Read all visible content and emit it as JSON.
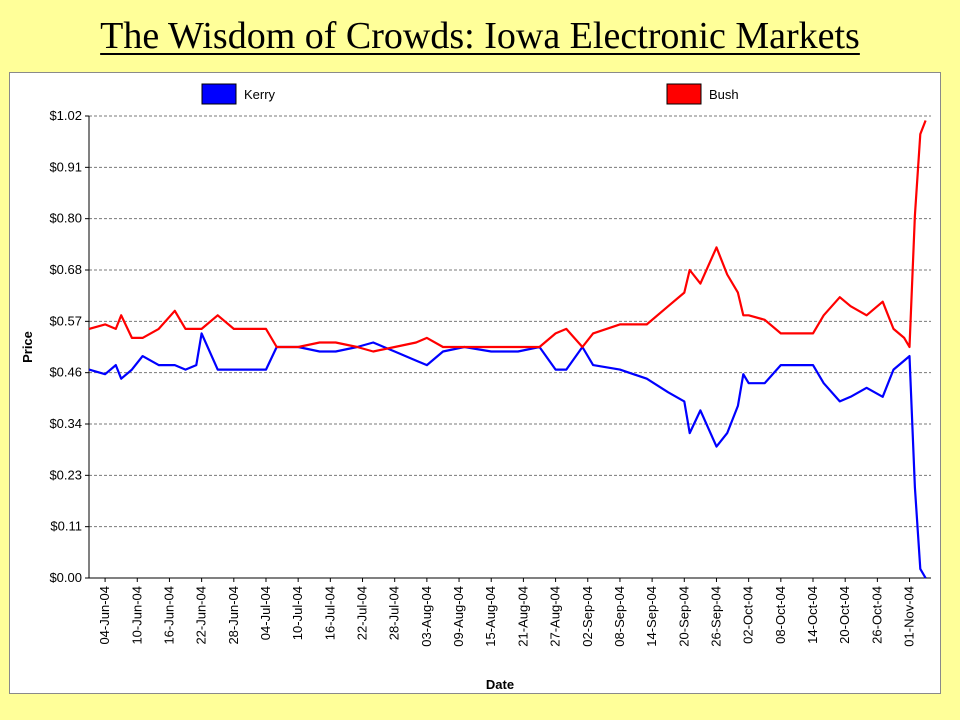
{
  "page": {
    "title": "The Wisdom of Crowds: Iowa Electronic Markets",
    "background": "#FFFF99"
  },
  "chart_data": {
    "type": "line",
    "title": "",
    "xlabel": "Date",
    "ylabel": "Price",
    "grid": true,
    "legend_position": "top",
    "y_ticks": [
      "$0.00",
      "$0.11",
      "$0.23",
      "$0.34",
      "$0.46",
      "$0.57",
      "$0.68",
      "$0.80",
      "$0.91",
      "$1.02"
    ],
    "ylim": [
      0,
      1.02
    ],
    "xlim": [
      "2004-06-01",
      "2004-11-05"
    ],
    "x_ticks": [
      "04-Jun-04",
      "10-Jun-04",
      "16-Jun-04",
      "22-Jun-04",
      "28-Jun-04",
      "04-Jul-04",
      "10-Jul-04",
      "16-Jul-04",
      "22-Jul-04",
      "28-Jul-04",
      "03-Aug-04",
      "09-Aug-04",
      "15-Aug-04",
      "21-Aug-04",
      "27-Aug-04",
      "02-Sep-04",
      "08-Sep-04",
      "14-Sep-04",
      "20-Sep-04",
      "26-Sep-04",
      "02-Oct-04",
      "08-Oct-04",
      "14-Oct-04",
      "20-Oct-04",
      "26-Oct-04",
      "01-Nov-04"
    ],
    "series": [
      {
        "name": "Kerry",
        "color": "#0000FF",
        "x": [
          "2004-06-01",
          "2004-06-04",
          "2004-06-06",
          "2004-06-07",
          "2004-06-09",
          "2004-06-11",
          "2004-06-14",
          "2004-06-17",
          "2004-06-19",
          "2004-06-21",
          "2004-06-22",
          "2004-06-25",
          "2004-06-28",
          "2004-07-01",
          "2004-07-04",
          "2004-07-06",
          "2004-07-10",
          "2004-07-14",
          "2004-07-17",
          "2004-07-21",
          "2004-07-24",
          "2004-07-28",
          "2004-08-01",
          "2004-08-03",
          "2004-08-06",
          "2004-08-10",
          "2004-08-15",
          "2004-08-20",
          "2004-08-24",
          "2004-08-27",
          "2004-08-29",
          "2004-09-01",
          "2004-09-03",
          "2004-09-08",
          "2004-09-13",
          "2004-09-17",
          "2004-09-20",
          "2004-09-21",
          "2004-09-23",
          "2004-09-26",
          "2004-09-28",
          "2004-09-30",
          "2004-10-01",
          "2004-10-02",
          "2004-10-05",
          "2004-10-08",
          "2004-10-11",
          "2004-10-14",
          "2004-10-16",
          "2004-10-19",
          "2004-10-21",
          "2004-10-24",
          "2004-10-27",
          "2004-10-29",
          "2004-10-31",
          "2004-11-01",
          "2004-11-02",
          "2004-11-03",
          "2004-11-04"
        ],
        "y": [
          0.46,
          0.45,
          0.47,
          0.44,
          0.46,
          0.49,
          0.47,
          0.47,
          0.46,
          0.47,
          0.54,
          0.46,
          0.46,
          0.46,
          0.46,
          0.51,
          0.51,
          0.5,
          0.5,
          0.51,
          0.52,
          0.5,
          0.48,
          0.47,
          0.5,
          0.51,
          0.5,
          0.5,
          0.51,
          0.46,
          0.46,
          0.51,
          0.47,
          0.46,
          0.44,
          0.41,
          0.39,
          0.32,
          0.37,
          0.29,
          0.32,
          0.38,
          0.45,
          0.43,
          0.43,
          0.47,
          0.47,
          0.47,
          0.43,
          0.39,
          0.4,
          0.42,
          0.4,
          0.46,
          0.48,
          0.49,
          0.2,
          0.02,
          0.0
        ]
      },
      {
        "name": "Bush",
        "color": "#FF0000",
        "x": [
          "2004-06-01",
          "2004-06-04",
          "2004-06-06",
          "2004-06-07",
          "2004-06-09",
          "2004-06-11",
          "2004-06-14",
          "2004-06-17",
          "2004-06-19",
          "2004-06-21",
          "2004-06-22",
          "2004-06-25",
          "2004-06-28",
          "2004-07-01",
          "2004-07-04",
          "2004-07-06",
          "2004-07-10",
          "2004-07-14",
          "2004-07-17",
          "2004-07-21",
          "2004-07-24",
          "2004-07-28",
          "2004-08-01",
          "2004-08-03",
          "2004-08-06",
          "2004-08-10",
          "2004-08-15",
          "2004-08-20",
          "2004-08-24",
          "2004-08-27",
          "2004-08-29",
          "2004-09-01",
          "2004-09-03",
          "2004-09-08",
          "2004-09-13",
          "2004-09-17",
          "2004-09-20",
          "2004-09-21",
          "2004-09-23",
          "2004-09-26",
          "2004-09-28",
          "2004-09-30",
          "2004-10-01",
          "2004-10-02",
          "2004-10-05",
          "2004-10-08",
          "2004-10-11",
          "2004-10-14",
          "2004-10-16",
          "2004-10-19",
          "2004-10-21",
          "2004-10-24",
          "2004-10-27",
          "2004-10-29",
          "2004-10-31",
          "2004-11-01",
          "2004-11-02",
          "2004-11-03",
          "2004-11-04"
        ],
        "y": [
          0.55,
          0.56,
          0.55,
          0.58,
          0.53,
          0.53,
          0.55,
          0.59,
          0.55,
          0.55,
          0.55,
          0.58,
          0.55,
          0.55,
          0.55,
          0.51,
          0.51,
          0.52,
          0.52,
          0.51,
          0.5,
          0.51,
          0.52,
          0.53,
          0.51,
          0.51,
          0.51,
          0.51,
          0.51,
          0.54,
          0.55,
          0.51,
          0.54,
          0.56,
          0.56,
          0.6,
          0.63,
          0.68,
          0.65,
          0.73,
          0.67,
          0.63,
          0.58,
          0.58,
          0.57,
          0.54,
          0.54,
          0.54,
          0.58,
          0.62,
          0.6,
          0.58,
          0.61,
          0.55,
          0.53,
          0.51,
          0.8,
          0.98,
          1.01
        ]
      }
    ]
  }
}
